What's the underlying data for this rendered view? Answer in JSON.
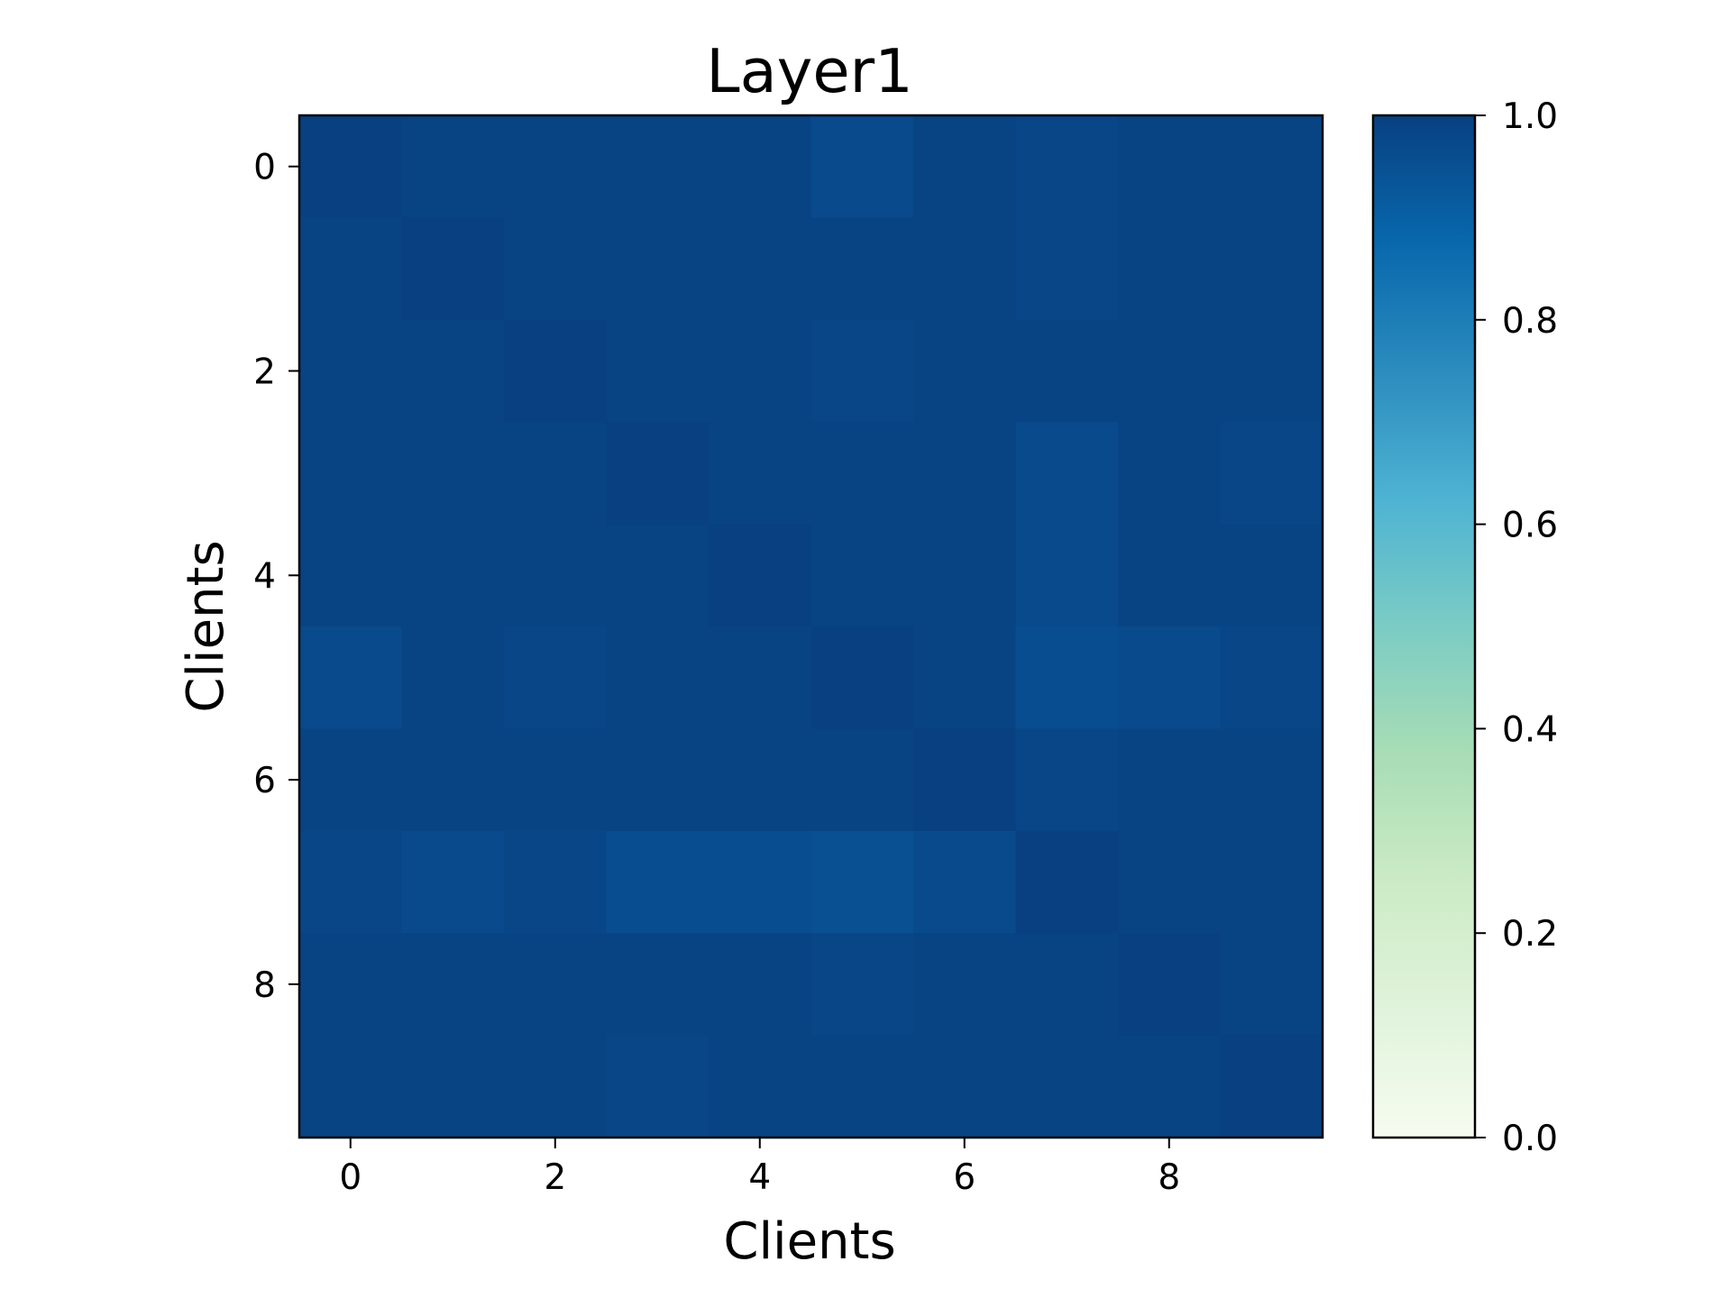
{
  "chart_data": {
    "type": "heatmap",
    "title": "Layer1",
    "xlabel": "Clients",
    "ylabel": "Clients",
    "x_categories": [
      0,
      1,
      2,
      3,
      4,
      5,
      6,
      7,
      8,
      9
    ],
    "y_categories": [
      0,
      1,
      2,
      3,
      4,
      5,
      6,
      7,
      8,
      9
    ],
    "x_tick_labels": [
      "0",
      "2",
      "4",
      "6",
      "8"
    ],
    "y_tick_labels": [
      "0",
      "2",
      "4",
      "6",
      "8"
    ],
    "values": [
      [
        1.0,
        0.99,
        0.99,
        0.99,
        0.99,
        0.97,
        0.99,
        0.98,
        0.99,
        0.99
      ],
      [
        0.99,
        1.0,
        0.99,
        0.99,
        0.99,
        0.99,
        0.99,
        0.98,
        0.99,
        0.99
      ],
      [
        0.99,
        0.99,
        1.0,
        0.99,
        0.99,
        0.98,
        0.99,
        0.99,
        0.99,
        0.99
      ],
      [
        0.99,
        0.99,
        0.99,
        1.0,
        0.99,
        0.99,
        0.99,
        0.97,
        0.99,
        0.98
      ],
      [
        0.99,
        0.99,
        0.99,
        0.99,
        1.0,
        0.99,
        0.99,
        0.97,
        0.99,
        0.99
      ],
      [
        0.97,
        0.99,
        0.98,
        0.99,
        0.99,
        1.0,
        0.99,
        0.96,
        0.97,
        0.98
      ],
      [
        0.99,
        0.99,
        0.99,
        0.99,
        0.99,
        0.99,
        1.0,
        0.98,
        0.99,
        0.99
      ],
      [
        0.98,
        0.97,
        0.98,
        0.96,
        0.96,
        0.95,
        0.97,
        1.0,
        0.99,
        0.99
      ],
      [
        0.99,
        0.99,
        0.99,
        0.99,
        0.99,
        0.98,
        0.99,
        0.99,
        1.0,
        0.99
      ],
      [
        0.99,
        0.99,
        0.99,
        0.98,
        0.99,
        0.99,
        0.99,
        0.99,
        0.99,
        1.0
      ]
    ],
    "colorbar": {
      "colormap": "GnBu",
      "range": [
        0.0,
        1.0
      ],
      "tick_labels": [
        "0.0",
        "0.2",
        "0.4",
        "0.6",
        "0.8",
        "1.0"
      ],
      "tick_values": [
        0.0,
        0.2,
        0.4,
        0.6,
        0.8,
        1.0
      ]
    },
    "colormap_stops": [
      "#f7fcf0",
      "#e0f3db",
      "#ccebc5",
      "#a8ddb5",
      "#7bccc4",
      "#4eb3d3",
      "#2b8cbe",
      "#0868ac",
      "#084081"
    ]
  }
}
